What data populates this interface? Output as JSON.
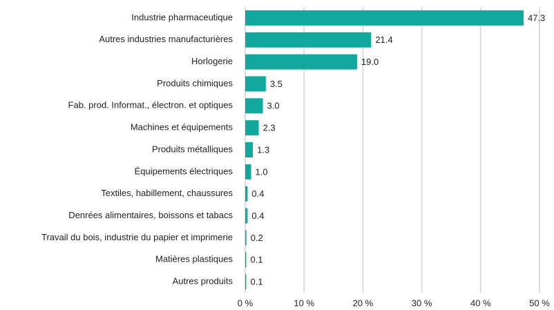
{
  "chart_data": {
    "type": "hbar",
    "categories": [
      "Industrie pharmaceutique",
      "Autres industries manufacturières",
      "Horlogerie",
      "Produits chimiques",
      "Fab. prod. Informat., électron. et optiques",
      "Machines et équipements",
      "Produits métalliques",
      "Équipements électriques",
      "Textiles, habillement, chaussures",
      "Denrées alimentaires, boissons et tabacs",
      "Travail du bois, industrie du papier et imprimerie",
      "Matières plastiques",
      "Autres produits"
    ],
    "values": [
      47.3,
      21.4,
      19.0,
      3.5,
      3.0,
      2.3,
      1.3,
      1.0,
      0.4,
      0.4,
      0.2,
      0.1,
      0.1
    ],
    "value_labels": [
      "47.3",
      "21.4",
      "19.0",
      "3.5",
      "3.0",
      "2.3",
      "1.3",
      "1.0",
      "0.4",
      "0.4",
      "0.2",
      "0.1",
      "0.1"
    ],
    "color": "#12a89d",
    "xlim": [
      0,
      50
    ],
    "xticks": [
      {
        "value": 0,
        "label": "0 %"
      },
      {
        "value": 10,
        "label": "10 %"
      },
      {
        "value": 20,
        "label": "20 %"
      },
      {
        "value": 30,
        "label": "30 %"
      },
      {
        "value": 40,
        "label": "40 %"
      },
      {
        "value": 50,
        "label": "50 %"
      }
    ],
    "grid": true
  }
}
